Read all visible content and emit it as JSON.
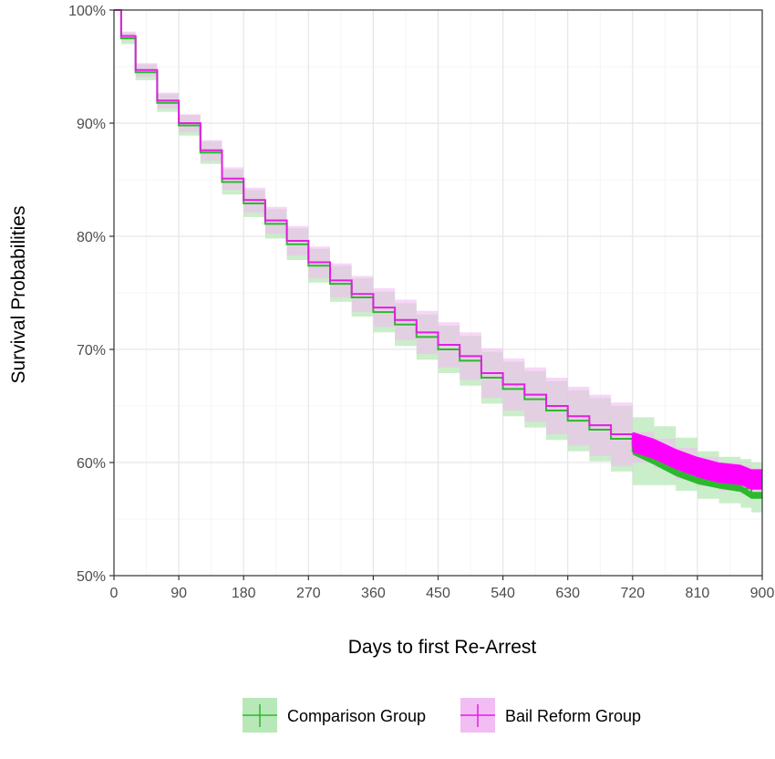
{
  "chart_data": {
    "type": "line",
    "title": "",
    "xlabel": "Days to first Re-Arrest",
    "ylabel": "Survival Probabilities",
    "xlim": [
      0,
      900
    ],
    "ylim": [
      0.5,
      1.0
    ],
    "x_ticks": [
      0,
      90,
      180,
      270,
      360,
      450,
      540,
      630,
      720,
      810,
      900
    ],
    "x_tick_labels": [
      "0",
      "90",
      "180",
      "270",
      "360",
      "450",
      "540",
      "630",
      "720",
      "810",
      "900"
    ],
    "y_ticks": [
      0.5,
      0.6,
      0.7,
      0.8,
      0.9,
      1.0
    ],
    "y_tick_labels": [
      "50%",
      "60%",
      "70%",
      "80%",
      "90%",
      "100%"
    ],
    "grid": true,
    "legend_position": "bottom",
    "series": [
      {
        "name": "Comparison Group",
        "color": "#2db82d",
        "band_color": "#b8e8b8",
        "x": [
          0,
          10,
          30,
          60,
          90,
          120,
          150,
          180,
          210,
          240,
          270,
          300,
          330,
          360,
          390,
          420,
          450,
          480,
          510,
          540,
          570,
          600,
          630,
          660,
          690,
          720,
          750,
          780,
          810,
          840,
          870,
          885,
          900
        ],
        "y": [
          1.0,
          0.975,
          0.945,
          0.918,
          0.898,
          0.874,
          0.848,
          0.829,
          0.811,
          0.793,
          0.774,
          0.758,
          0.746,
          0.733,
          0.722,
          0.711,
          0.7,
          0.69,
          0.675,
          0.665,
          0.656,
          0.646,
          0.637,
          0.629,
          0.621,
          0.61,
          0.601,
          0.591,
          0.584,
          0.58,
          0.577,
          0.571,
          0.571
        ],
        "lower": [
          1.0,
          0.97,
          0.938,
          0.91,
          0.889,
          0.864,
          0.837,
          0.817,
          0.798,
          0.779,
          0.759,
          0.742,
          0.729,
          0.715,
          0.703,
          0.691,
          0.679,
          0.668,
          0.652,
          0.641,
          0.631,
          0.62,
          0.61,
          0.601,
          0.592,
          0.58,
          0.58,
          0.575,
          0.568,
          0.564,
          0.56,
          0.556,
          0.556
        ],
        "upper": [
          1.0,
          0.98,
          0.952,
          0.926,
          0.907,
          0.884,
          0.859,
          0.841,
          0.824,
          0.807,
          0.789,
          0.774,
          0.763,
          0.751,
          0.741,
          0.731,
          0.721,
          0.712,
          0.698,
          0.689,
          0.681,
          0.672,
          0.664,
          0.657,
          0.65,
          0.64,
          0.632,
          0.622,
          0.61,
          0.605,
          0.603,
          0.6,
          0.6
        ]
      },
      {
        "name": "Bail Reform Group",
        "color": "#e020e0",
        "band_color": "#f2bdf2",
        "x": [
          0,
          10,
          30,
          60,
          90,
          120,
          150,
          180,
          210,
          240,
          270,
          300,
          330,
          360,
          390,
          420,
          450,
          480,
          510,
          540,
          570,
          600,
          630,
          660,
          690,
          720,
          750,
          780,
          810,
          840,
          870,
          885,
          900
        ],
        "y": [
          1.0,
          0.977,
          0.947,
          0.92,
          0.9,
          0.876,
          0.851,
          0.832,
          0.814,
          0.796,
          0.777,
          0.761,
          0.749,
          0.737,
          0.726,
          0.715,
          0.704,
          0.694,
          0.679,
          0.669,
          0.66,
          0.65,
          0.641,
          0.633,
          0.625,
          0.615,
          0.609,
          0.6,
          0.593,
          0.588,
          0.586,
          0.582,
          0.582
        ],
        "lower": [
          1.0,
          0.973,
          0.941,
          0.913,
          0.892,
          0.867,
          0.841,
          0.821,
          0.802,
          0.783,
          0.763,
          0.746,
          0.733,
          0.72,
          0.708,
          0.696,
          0.684,
          0.673,
          0.657,
          0.646,
          0.636,
          0.625,
          0.615,
          0.606,
          0.597,
          0.6,
          0.595,
          0.585,
          0.579,
          0.575,
          0.572,
          0.569,
          0.569
        ],
        "upper": [
          1.0,
          0.981,
          0.953,
          0.927,
          0.908,
          0.885,
          0.861,
          0.843,
          0.826,
          0.809,
          0.791,
          0.776,
          0.765,
          0.754,
          0.744,
          0.734,
          0.724,
          0.715,
          0.701,
          0.692,
          0.684,
          0.675,
          0.667,
          0.66,
          0.653,
          0.627,
          0.621,
          0.613,
          0.605,
          0.6,
          0.598,
          0.595,
          0.595
        ]
      }
    ]
  }
}
